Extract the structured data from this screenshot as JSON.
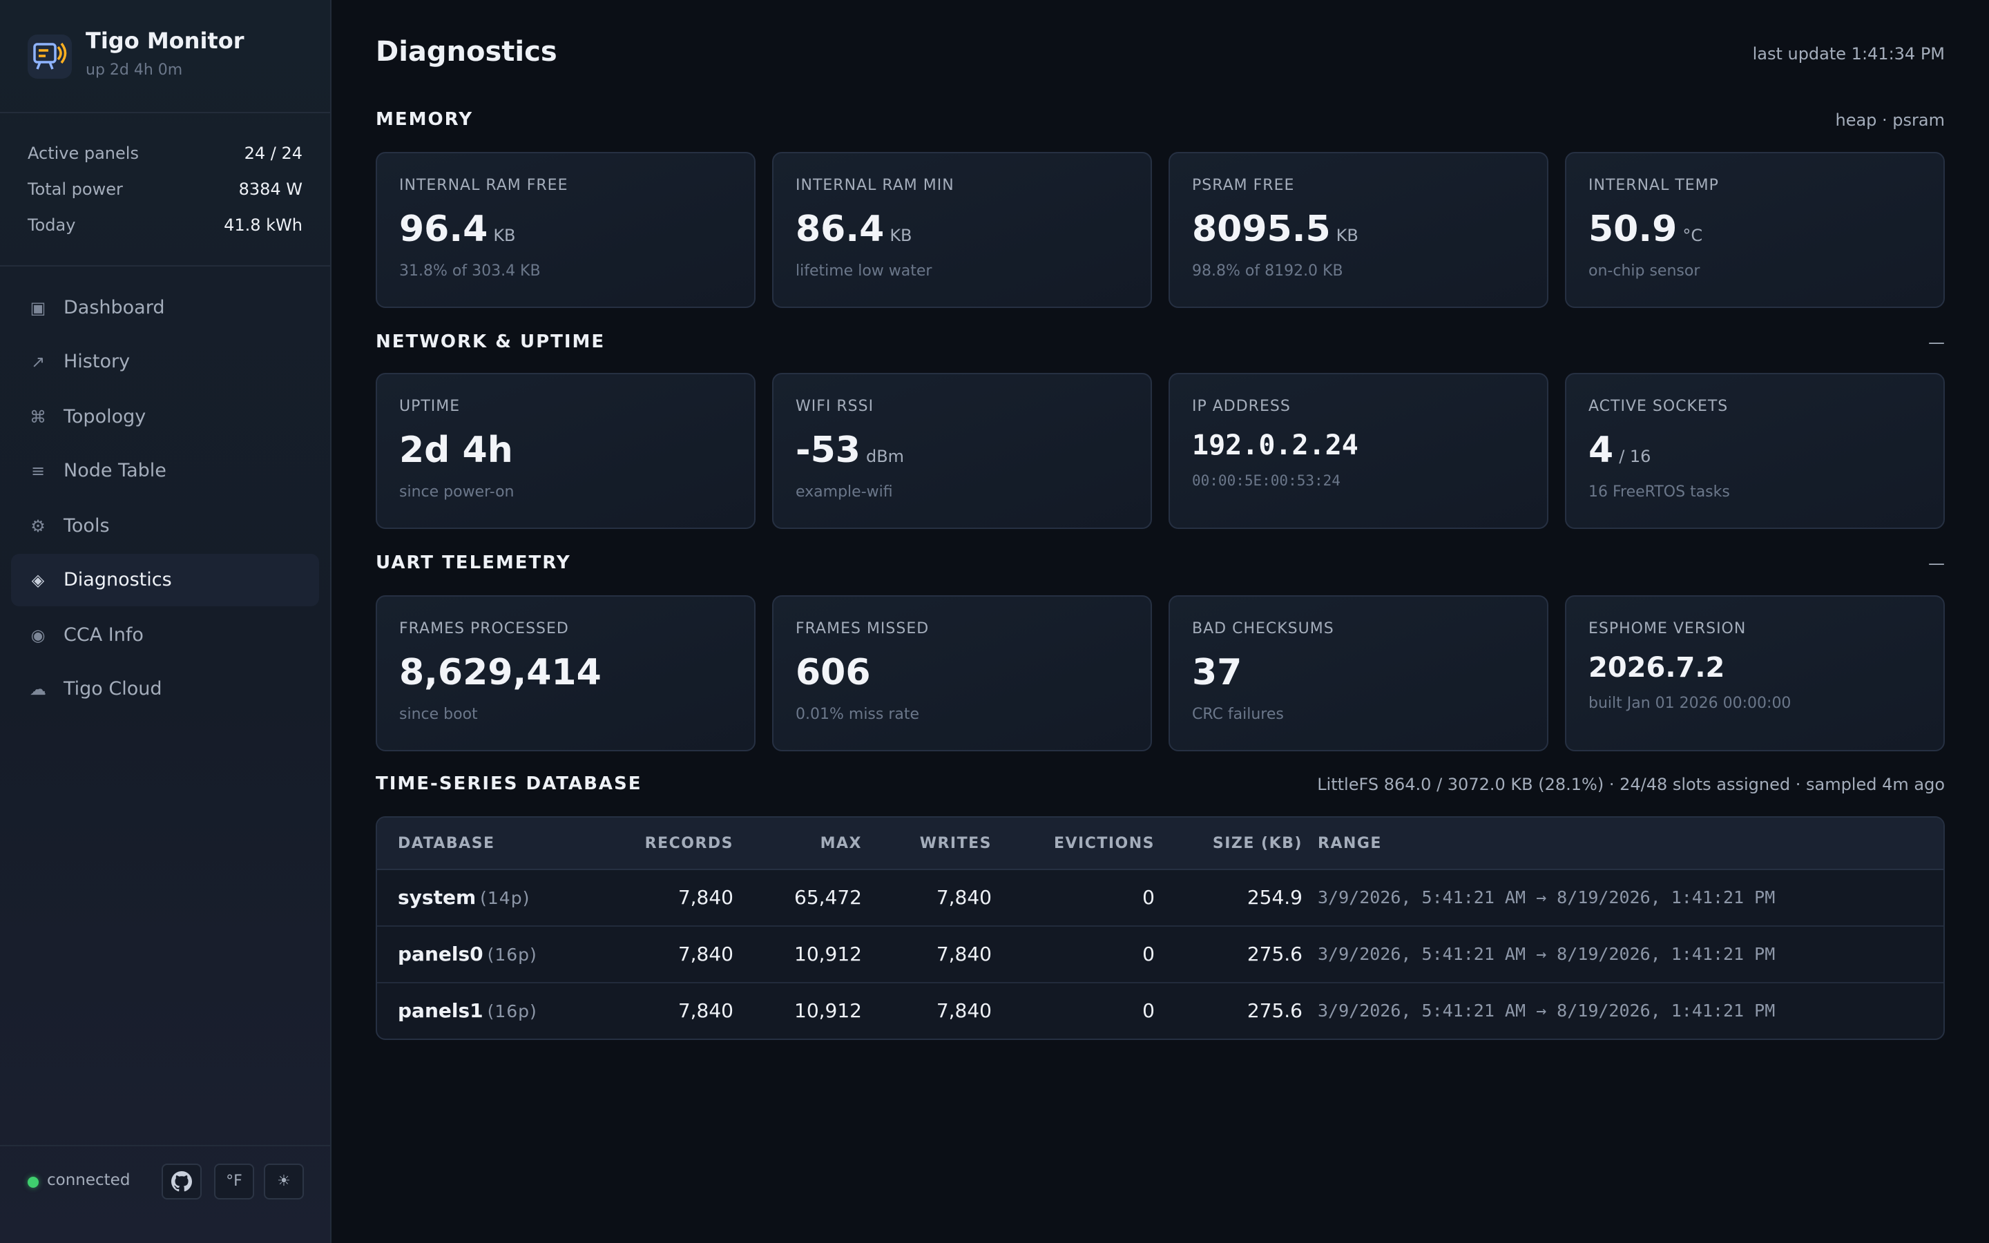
{
  "brand": {
    "title": "Tigo Monitor",
    "subtitle": "up 2d 4h 0m"
  },
  "stats": [
    {
      "label": "Active panels",
      "value": "24 / 24"
    },
    {
      "label": "Total power",
      "value": "8384 W"
    },
    {
      "label": "Today",
      "value": "41.8 kWh"
    }
  ],
  "nav": [
    {
      "icon": "▣",
      "label": "Dashboard"
    },
    {
      "icon": "↗",
      "label": "History"
    },
    {
      "icon": "⌘",
      "label": "Topology"
    },
    {
      "icon": "≡",
      "label": "Node Table"
    },
    {
      "icon": "⚙",
      "label": "Tools"
    },
    {
      "icon": "◈",
      "label": "Diagnostics",
      "active": true
    },
    {
      "icon": "◉",
      "label": "CCA Info"
    },
    {
      "icon": "☁",
      "label": "Tigo Cloud"
    }
  ],
  "footer": {
    "status": "connected",
    "status_color": "#3fcf6e",
    "unit_button": "°F",
    "theme_button": "☀"
  },
  "page": {
    "title": "Diagnostics",
    "last_update": "last update 1:41:34 PM"
  },
  "sections": {
    "memory": {
      "title": "MEMORY",
      "meta": "heap · psram",
      "cards": [
        {
          "label": "INTERNAL RAM FREE",
          "value": "96.4",
          "unit": "KB",
          "sub": "31.8% of 303.4 KB"
        },
        {
          "label": "INTERNAL RAM MIN",
          "value": "86.4",
          "unit": "KB",
          "sub": "lifetime low water"
        },
        {
          "label": "PSRAM FREE",
          "value": "8095.5",
          "unit": "KB",
          "sub": "98.8% of 8192.0 KB"
        },
        {
          "label": "INTERNAL TEMP",
          "value": "50.9",
          "unit": "°C",
          "sub": "on-chip sensor"
        }
      ]
    },
    "network": {
      "title": "NETWORK & UPTIME",
      "meta": "—",
      "cards": [
        {
          "label": "UPTIME",
          "value": "2d 4h",
          "unit": "",
          "sub": "since power-on"
        },
        {
          "label": "WIFI RSSI",
          "value": "-53",
          "unit": "dBm",
          "sub": "example-wifi"
        },
        {
          "label": "IP ADDRESS",
          "value": "192.0.2.24",
          "unit": "",
          "sub": "00:00:5E:00:53:24"
        },
        {
          "label": "ACTIVE SOCKETS",
          "value": "4",
          "unit": "/ 16",
          "sub": "16 FreeRTOS tasks"
        }
      ]
    },
    "uart": {
      "title": "UART TELEMETRY",
      "meta": "—",
      "cards": [
        {
          "label": "FRAMES PROCESSED",
          "value": "8,629,414",
          "unit": "",
          "sub": "since boot"
        },
        {
          "label": "FRAMES MISSED",
          "value": "606",
          "unit": "",
          "sub": "0.01% miss rate"
        },
        {
          "label": "BAD CHECKSUMS",
          "value": "37",
          "unit": "",
          "sub": "CRC failures"
        },
        {
          "label": "ESPHOME VERSION",
          "value": "2026.7.2",
          "unit": "",
          "sub": "built Jan 01 2026 00:00:00"
        }
      ]
    },
    "tsdb": {
      "title": "TIME-SERIES DATABASE",
      "meta": "LittleFS 864.0 / 3072.0 KB (28.1%) · 24/48 slots assigned · sampled 4m ago",
      "columns": [
        "DATABASE",
        "RECORDS",
        "MAX",
        "WRITES",
        "EVICTIONS",
        "SIZE (KB)",
        "RANGE"
      ],
      "rows": [
        {
          "name": "system",
          "panels": "(14p)",
          "records": "7,840",
          "max": "65,472",
          "writes": "7,840",
          "evictions": "0",
          "size": "254.9",
          "range": "3/9/2026, 5:41:21 AM → 8/19/2026, 1:41:21 PM"
        },
        {
          "name": "panels0",
          "panels": "(16p)",
          "records": "7,840",
          "max": "10,912",
          "writes": "7,840",
          "evictions": "0",
          "size": "275.6",
          "range": "3/9/2026, 5:41:21 AM → 8/19/2026, 1:41:21 PM"
        },
        {
          "name": "panels1",
          "panels": "(16p)",
          "records": "7,840",
          "max": "10,912",
          "writes": "7,840",
          "evictions": "0",
          "size": "275.6",
          "range": "3/9/2026, 5:41:21 AM → 8/19/2026, 1:41:21 PM"
        }
      ]
    }
  }
}
